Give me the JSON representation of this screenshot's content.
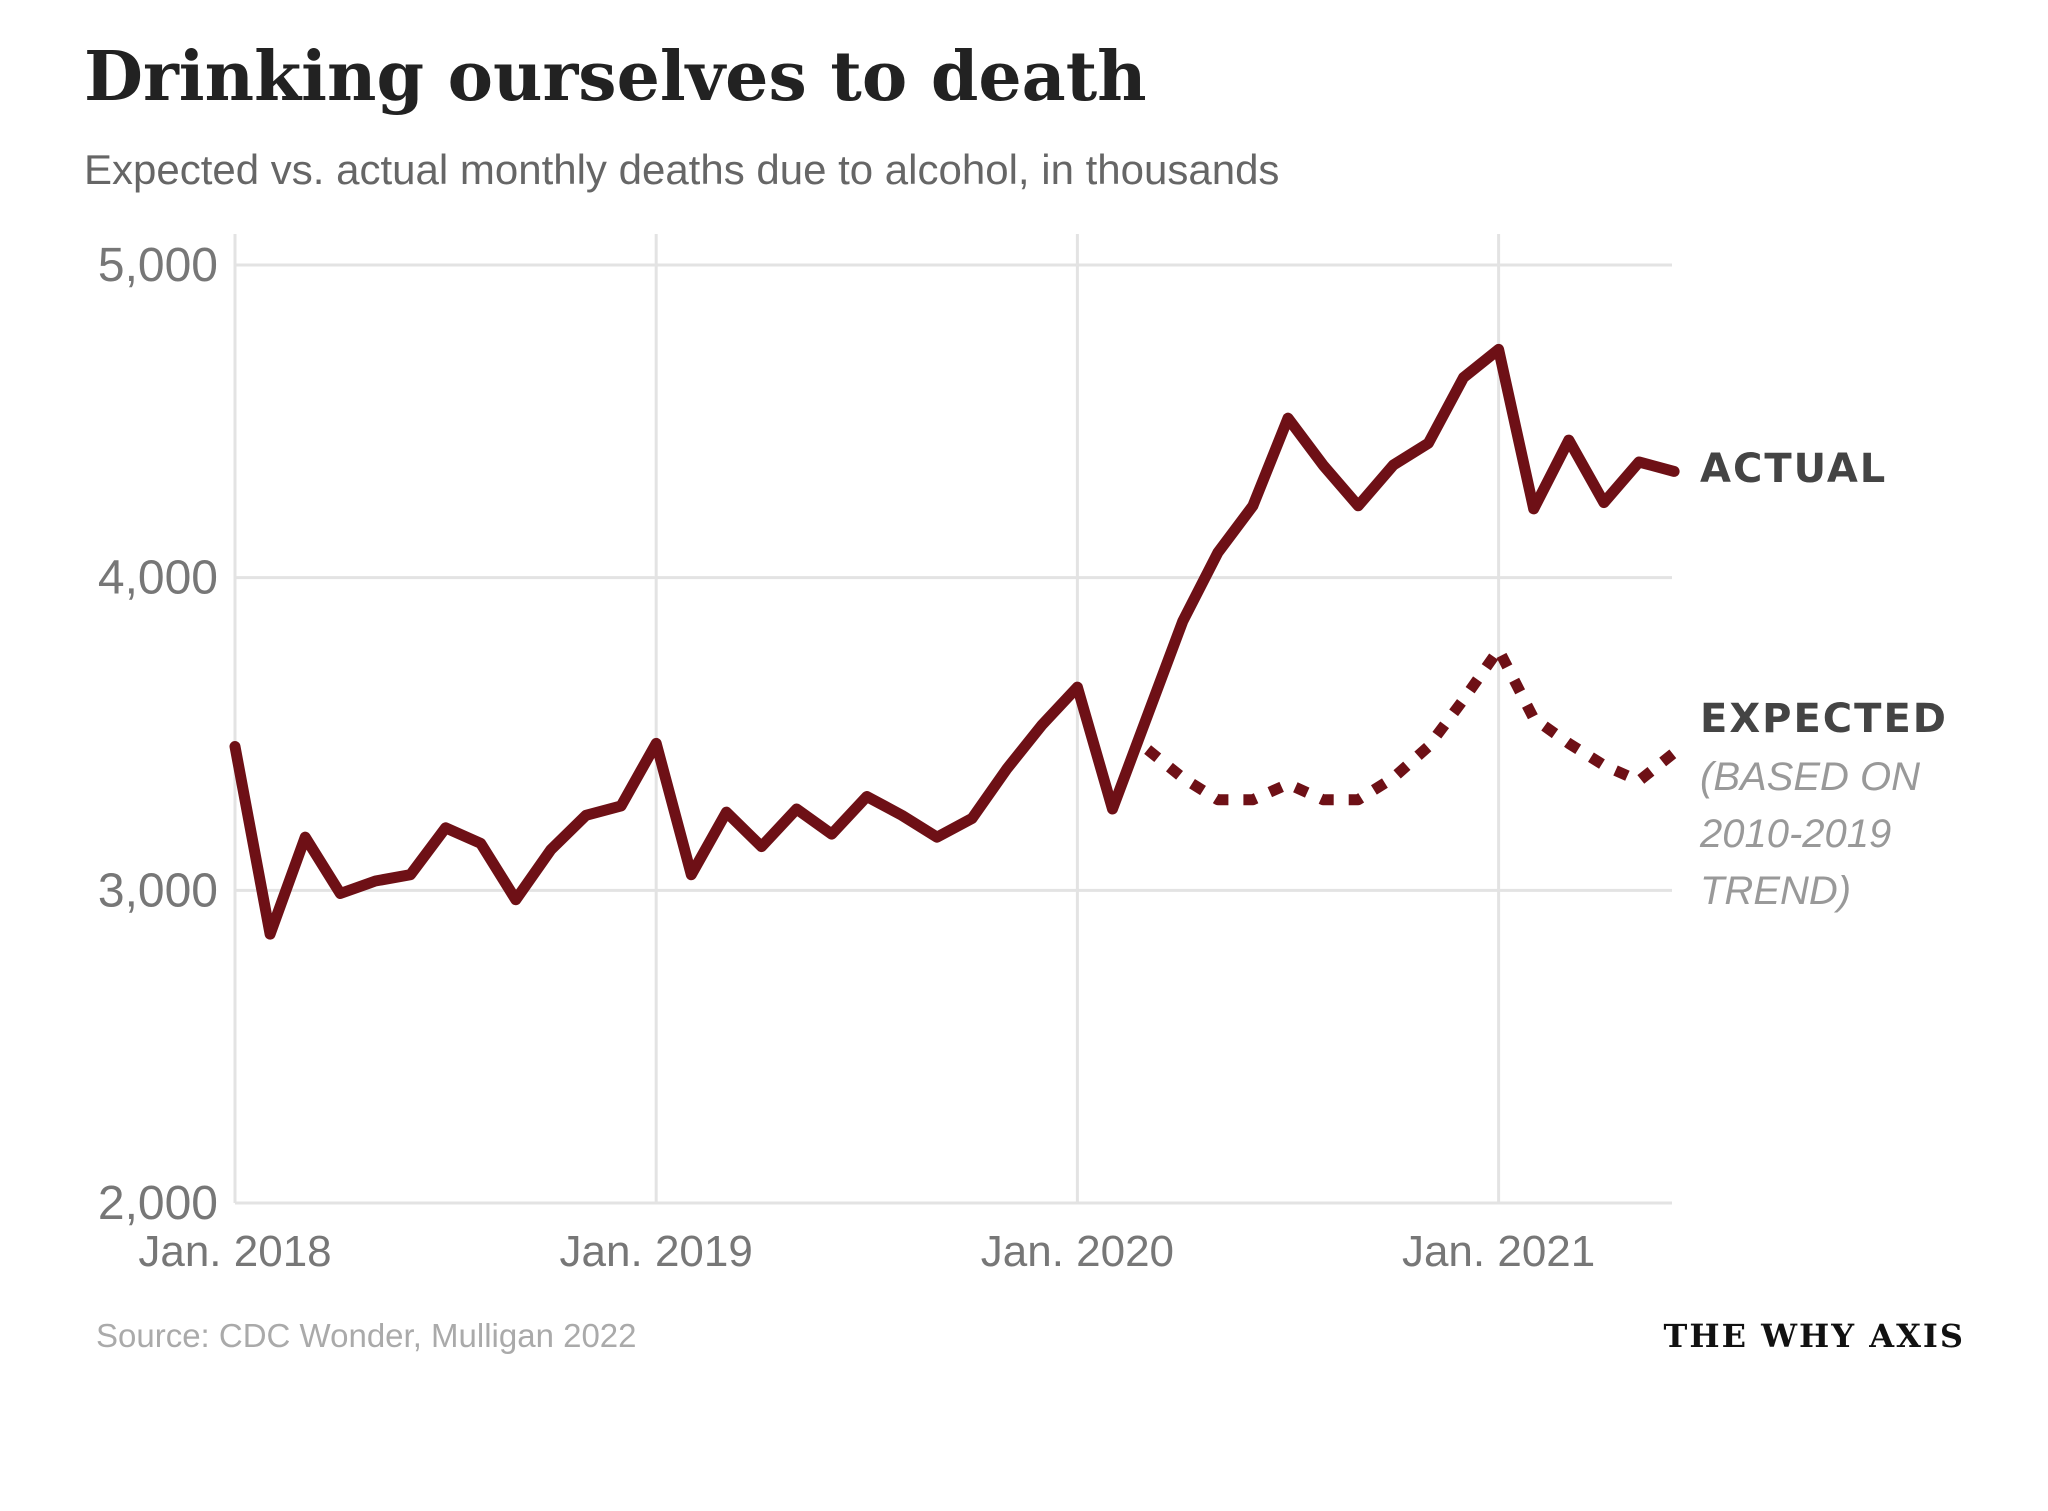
{
  "chart_data": {
    "type": "line",
    "title": "Drinking ourselves to death",
    "subtitle": "Expected vs. actual monthly deaths due to alcohol, in thousands",
    "xlabel": "",
    "ylabel": "",
    "ylim": [
      2000,
      5000
    ],
    "xlim": [
      0,
      41
    ],
    "grid": true,
    "y_ticks": [
      {
        "value": 5000,
        "label": "5,000"
      },
      {
        "value": 4000,
        "label": "4,000"
      },
      {
        "value": 3000,
        "label": "3,000"
      },
      {
        "value": 2000,
        "label": "2,000"
      }
    ],
    "x_ticks": [
      {
        "value": 0,
        "label": "Jan. 2018"
      },
      {
        "value": 12,
        "label": "Jan. 2019"
      },
      {
        "value": 24,
        "label": "Jan. 2020"
      },
      {
        "value": 36,
        "label": "Jan. 2021"
      }
    ],
    "series": [
      {
        "name": "ACTUAL",
        "style": "solid",
        "color": "#6e1016",
        "x": [
          0,
          1,
          2,
          3,
          4,
          5,
          6,
          7,
          8,
          9,
          10,
          11,
          12,
          13,
          14,
          15,
          16,
          17,
          18,
          19,
          20,
          21,
          22,
          23,
          24,
          25,
          26,
          27,
          28,
          29,
          30,
          31,
          32,
          33,
          34,
          35,
          36,
          37,
          38,
          39,
          40,
          41
        ],
        "values": [
          3460,
          2860,
          3170,
          2990,
          3030,
          3050,
          3200,
          3150,
          2970,
          3130,
          3240,
          3270,
          3470,
          3050,
          3250,
          3140,
          3260,
          3180,
          3300,
          3240,
          3170,
          3230,
          3390,
          3530,
          3650,
          3260,
          3560,
          3860,
          4080,
          4230,
          4510,
          4360,
          4230,
          4360,
          4430,
          4640,
          4730,
          4220,
          4440,
          4240,
          4370,
          4340
        ]
      },
      {
        "name": "EXPECTED",
        "style": "dotted",
        "color": "#6e1016",
        "x": [
          26,
          27,
          28,
          29,
          30,
          31,
          32,
          33,
          34,
          35,
          36,
          37,
          38,
          39,
          40,
          41
        ],
        "values": [
          3450,
          3360,
          3290,
          3290,
          3340,
          3290,
          3290,
          3360,
          3460,
          3610,
          3770,
          3550,
          3470,
          3400,
          3350,
          3440
        ]
      }
    ],
    "legend_labels": {
      "actual": "ACTUAL",
      "expected": "EXPECTED",
      "expected_note": [
        "(BASED ON",
        "2010-2019",
        "TREND)"
      ]
    },
    "source": "Source: CDC Wonder, Mulligan 2022",
    "brand": "THE WHY AXIS"
  }
}
